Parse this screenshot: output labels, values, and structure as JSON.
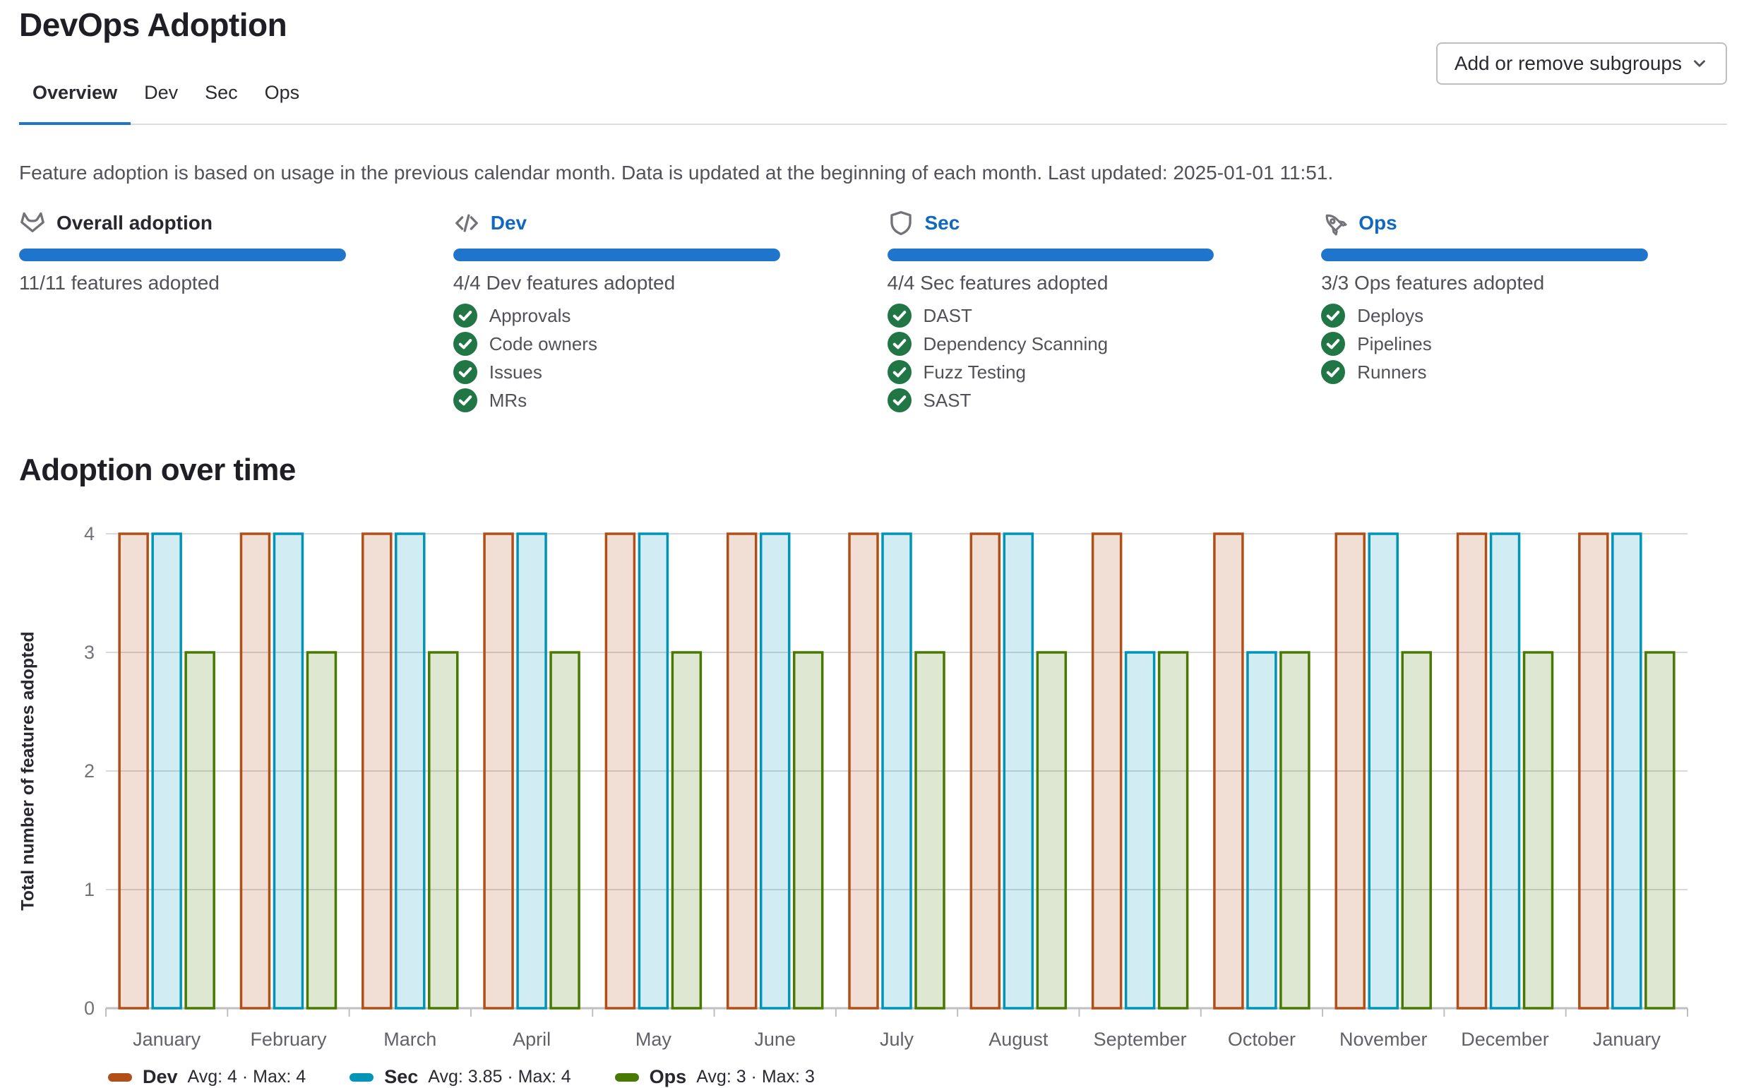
{
  "page": {
    "title": "DevOps Adoption"
  },
  "tabs": [
    {
      "label": "Overview",
      "active": true
    },
    {
      "label": "Dev",
      "active": false
    },
    {
      "label": "Sec",
      "active": false
    },
    {
      "label": "Ops",
      "active": false
    }
  ],
  "toolbar": {
    "add_remove_subgroups": "Add or remove subgroups"
  },
  "info_note": "Feature adoption is based on usage in the previous calendar month. Data is updated at the beginning of each month. Last updated: 2025-01-01 11:51.",
  "cards": [
    {
      "title": "Overall adoption",
      "icon": "tanuki-icon",
      "progress_percent": 100,
      "subtitle": "11/11 features adopted",
      "features": []
    },
    {
      "title": "Dev",
      "icon": "code-icon",
      "progress_percent": 100,
      "subtitle": "4/4 Dev features adopted",
      "features": [
        {
          "label": "Approvals"
        },
        {
          "label": "Code owners"
        },
        {
          "label": "Issues"
        },
        {
          "label": "MRs"
        }
      ]
    },
    {
      "title": "Sec",
      "icon": "shield-icon",
      "progress_percent": 100,
      "subtitle": "4/4 Sec features adopted",
      "features": [
        {
          "label": "DAST"
        },
        {
          "label": "Dependency Scanning"
        },
        {
          "label": "Fuzz Testing"
        },
        {
          "label": "SAST"
        }
      ]
    },
    {
      "title": "Ops",
      "icon": "rocket-icon",
      "progress_percent": 100,
      "subtitle": "3/3 Ops features adopted",
      "features": [
        {
          "label": "Deploys"
        },
        {
          "label": "Pipelines"
        },
        {
          "label": "Runners"
        }
      ]
    }
  ],
  "chart_section_title": "Adoption over time",
  "colors": {
    "accent_blue": "#1f75cb",
    "link_blue": "#1068bf",
    "check_green": "#217645",
    "dev": "#b14f18",
    "sec": "#0094b6",
    "ops": "#487900"
  },
  "chart_data": {
    "type": "bar",
    "title": "Adoption over time",
    "xlabel": "",
    "ylabel": "Total number of features adopted",
    "ylim": [
      0,
      4
    ],
    "yticks": [
      0,
      1,
      2,
      3,
      4
    ],
    "grid": true,
    "legend_position": "bottom",
    "categories": [
      "January",
      "February",
      "March",
      "April",
      "May",
      "June",
      "July",
      "August",
      "September",
      "October",
      "November",
      "December",
      "January"
    ],
    "series": [
      {
        "name": "Dev",
        "color": "#b14f18",
        "legend_stats": "Avg: 4 · Max: 4",
        "values": [
          4,
          4,
          4,
          4,
          4,
          4,
          4,
          4,
          4,
          4,
          4,
          4,
          4
        ]
      },
      {
        "name": "Sec",
        "color": "#0094b6",
        "legend_stats": "Avg: 3.85 · Max: 4",
        "values": [
          4,
          4,
          4,
          4,
          4,
          4,
          4,
          4,
          3,
          3,
          4,
          4,
          4
        ]
      },
      {
        "name": "Ops",
        "color": "#487900",
        "legend_stats": "Avg: 3 · Max: 3",
        "values": [
          3,
          3,
          3,
          3,
          3,
          3,
          3,
          3,
          3,
          3,
          3,
          3,
          3
        ]
      }
    ]
  }
}
